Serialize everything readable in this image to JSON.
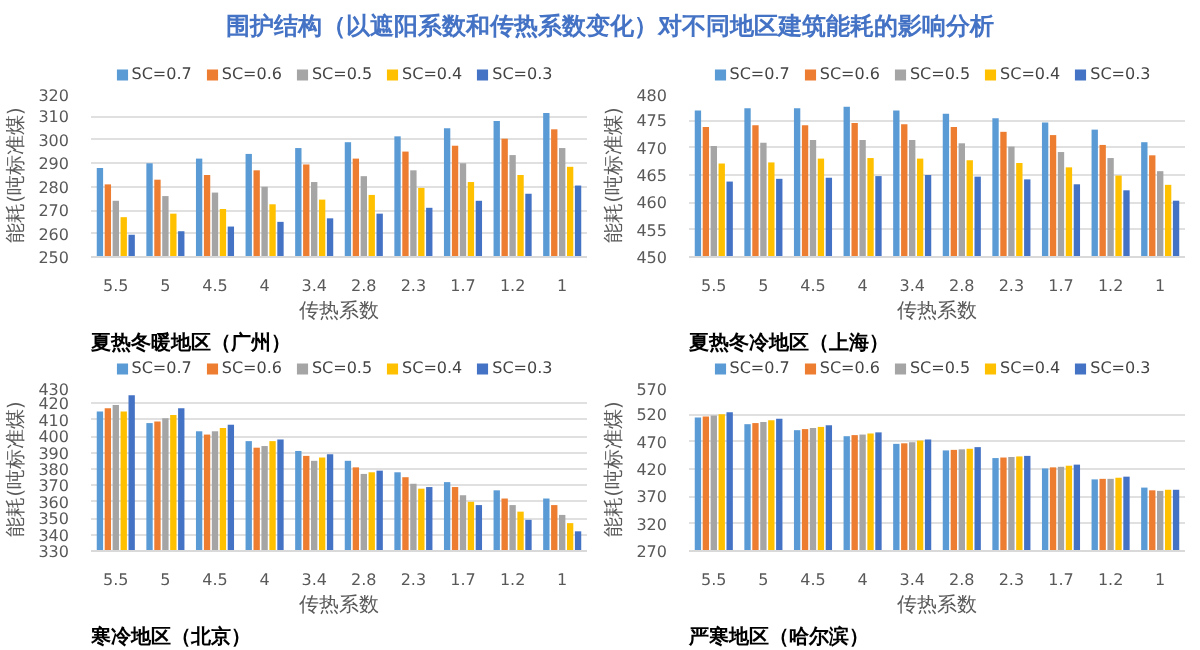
{
  "chart_data": [
    {
      "type": "bar",
      "title": "围护结构（以遮阳系数和传热系数变化）对不同地区建筑能耗的影响分析",
      "xlabel": "传热系数",
      "ylabel": "能耗(吨标准煤)",
      "annotations": [
        "夏热冬暖地区（广州）"
      ],
      "categories": [
        "5.5",
        "5",
        "4.5",
        "4",
        "3.4",
        "2.8",
        "2.3",
        "1.7",
        "1.2",
        "1"
      ],
      "ylim": [
        250,
        320
      ],
      "yticks": [
        250,
        260,
        270,
        280,
        290,
        300,
        310,
        320
      ],
      "grid": "y",
      "legend": "top",
      "series": [
        {
          "name": "SC=0.7",
          "color": "#5b9bd5",
          "values": [
            288,
            290,
            292,
            294,
            296.5,
            299,
            301.5,
            305,
            308,
            311.5
          ]
        },
        {
          "name": "SC=0.6",
          "color": "#ed7d31",
          "values": [
            281,
            283,
            285,
            287,
            289.5,
            292,
            295,
            297.5,
            300.5,
            304.5
          ]
        },
        {
          "name": "SC=0.5",
          "color": "#a5a5a5",
          "values": [
            274,
            276,
            277.5,
            280,
            282,
            284.5,
            287,
            290,
            293.5,
            296.5
          ]
        },
        {
          "name": "SC=0.4",
          "color": "#ffc000",
          "values": [
            267,
            268.5,
            270.5,
            272.5,
            274.5,
            276.5,
            279.5,
            282,
            285,
            288.5
          ]
        },
        {
          "name": "SC=0.3",
          "color": "#4472c4",
          "values": [
            259.5,
            261,
            263,
            265,
            266.5,
            268.5,
            271,
            274,
            277,
            280.5
          ]
        }
      ]
    },
    {
      "type": "bar",
      "xlabel": "传热系数",
      "ylabel": "能耗(吨标准煤)",
      "annotations": [
        "夏热冬冷地区（上海）"
      ],
      "categories": [
        "5.5",
        "5",
        "4.5",
        "4",
        "3.4",
        "2.8",
        "2.3",
        "1.7",
        "1.2",
        "1"
      ],
      "ylim": [
        450,
        480
      ],
      "yticks": [
        450,
        455,
        460,
        465,
        470,
        475,
        480
      ],
      "grid": "y",
      "legend": "top",
      "series": [
        {
          "name": "SC=0.7",
          "color": "#5b9bd5",
          "values": [
            476.8,
            477.2,
            477.2,
            477.5,
            476.8,
            476.2,
            475.4,
            474.6,
            473.3,
            471
          ]
        },
        {
          "name": "SC=0.6",
          "color": "#ed7d31",
          "values": [
            473.8,
            474.1,
            474.1,
            474.5,
            474.3,
            473.8,
            472.9,
            472.3,
            470.5,
            468.6
          ]
        },
        {
          "name": "SC=0.5",
          "color": "#a5a5a5",
          "values": [
            470.3,
            470.9,
            471.4,
            471.4,
            471.4,
            470.8,
            470.2,
            469.2,
            468.1,
            465.7
          ]
        },
        {
          "name": "SC=0.4",
          "color": "#ffc000",
          "values": [
            467.1,
            467.3,
            468,
            468.1,
            468,
            467.7,
            467.2,
            466.4,
            464.9,
            463.2
          ]
        },
        {
          "name": "SC=0.3",
          "color": "#4472c4",
          "values": [
            463.8,
            464.3,
            464.5,
            464.8,
            465,
            464.7,
            464.2,
            463.3,
            462.2,
            460.3
          ]
        }
      ]
    },
    {
      "type": "bar",
      "xlabel": "传热系数",
      "ylabel": "能耗(吨标准煤)",
      "annotations": [
        "寒冷地区（北京）"
      ],
      "categories": [
        "5.5",
        "5",
        "4.5",
        "4",
        "3.4",
        "2.8",
        "2.3",
        "1.7",
        "1.2",
        "1"
      ],
      "ylim": [
        330,
        430
      ],
      "yticks": [
        330,
        340,
        350,
        360,
        370,
        380,
        390,
        400,
        410,
        420,
        430
      ],
      "grid": "y",
      "legend": "top",
      "series": [
        {
          "name": "SC=0.7",
          "color": "#5b9bd5",
          "values": [
            415,
            408,
            403,
            397,
            391,
            385,
            378,
            372,
            367,
            362
          ]
        },
        {
          "name": "SC=0.6",
          "color": "#ed7d31",
          "values": [
            417,
            409,
            401,
            393,
            388,
            381,
            375,
            369,
            362,
            358
          ]
        },
        {
          "name": "SC=0.5",
          "color": "#a5a5a5",
          "values": [
            419,
            411,
            403,
            394,
            385,
            377,
            371,
            364,
            358,
            352
          ]
        },
        {
          "name": "SC=0.4",
          "color": "#ffc000",
          "values": [
            415,
            413,
            405,
            397,
            387,
            378,
            368,
            360,
            354,
            347
          ]
        },
        {
          "name": "SC=0.3",
          "color": "#4472c4",
          "values": [
            425,
            417,
            407,
            398,
            389,
            379,
            369,
            358,
            349,
            342
          ]
        }
      ]
    },
    {
      "type": "bar",
      "xlabel": "传热系数",
      "ylabel": "能耗(吨标准煤)",
      "annotations": [
        "严寒地区（哈尔滨）"
      ],
      "categories": [
        "5.5",
        "5",
        "4.5",
        "4",
        "3.4",
        "2.8",
        "2.3",
        "1.7",
        "1.2",
        "1"
      ],
      "ylim": [
        270,
        570
      ],
      "yticks": [
        270,
        320,
        370,
        420,
        470,
        520,
        570
      ],
      "grid": "y",
      "legend": "top",
      "series": [
        {
          "name": "SC=0.7",
          "color": "#5b9bd5",
          "values": [
            514,
            502,
            491,
            480,
            466,
            454,
            440,
            421,
            401,
            386
          ]
        },
        {
          "name": "SC=0.6",
          "color": "#ed7d31",
          "values": [
            516,
            504,
            493,
            482,
            467,
            455,
            441,
            423,
            402,
            381
          ]
        },
        {
          "name": "SC=0.5",
          "color": "#a5a5a5",
          "values": [
            518,
            506,
            495,
            483,
            469,
            456,
            442,
            424,
            402,
            380
          ]
        },
        {
          "name": "SC=0.4",
          "color": "#ffc000",
          "values": [
            520,
            509,
            497,
            485,
            472,
            457,
            443,
            426,
            404,
            382
          ]
        },
        {
          "name": "SC=0.3",
          "color": "#4472c4",
          "values": [
            524,
            512,
            500,
            487,
            474,
            460,
            444,
            428,
            406,
            382
          ]
        }
      ]
    }
  ]
}
